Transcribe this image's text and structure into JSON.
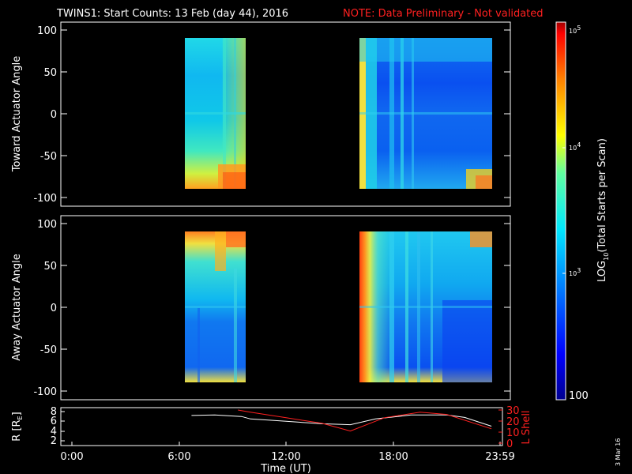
{
  "title": {
    "main": "TWINS1: Start Counts: 13 Feb (day  44), 2016",
    "note": "NOTE: Data Preliminary - Not validated"
  },
  "side_date": "3 Mar 16",
  "colors": {
    "background": "#000000",
    "axis": "#ffffff",
    "note": "#ff2020",
    "r_line": "#ffffff",
    "lshell_line": "#ff2020"
  },
  "colorbar": {
    "label_prefix": "LOG",
    "label_sub": "10",
    "label_suffix": "(Total Starts per Scan)",
    "tick_5": "10",
    "tick_5_exp": "5",
    "tick_4": "10",
    "tick_4_exp": "4",
    "tick_3": "10",
    "tick_3_exp": "3",
    "tick_2": "100",
    "scale": "log",
    "range": [
      100,
      100000
    ],
    "colormap": [
      "#00008f",
      "#0000ff",
      "#0080ff",
      "#00ffff",
      "#80ff80",
      "#ffff00",
      "#ff8000",
      "#ff0000",
      "#8f0000"
    ]
  },
  "chart_data": [
    {
      "type": "heatmap",
      "ylabel": "Toward Actuator Angle",
      "ylim": [
        -110,
        110
      ],
      "yticks": [
        "100",
        "50",
        "0",
        "-50",
        "-100"
      ],
      "x_range_hours": [
        0,
        24
      ],
      "data_intervals": [
        {
          "start": "06:45",
          "end": "09:45"
        },
        {
          "start": "15:40",
          "end": "23:30"
        }
      ]
    },
    {
      "type": "heatmap",
      "ylabel": "Away Actuator Angle",
      "ylim": [
        -110,
        110
      ],
      "yticks": [
        "100",
        "50",
        "0",
        "-50",
        "-100"
      ],
      "x_range_hours": [
        0,
        24
      ],
      "data_intervals": [
        {
          "start": "06:45",
          "end": "09:45"
        },
        {
          "start": "15:40",
          "end": "23:30"
        }
      ]
    },
    {
      "type": "line",
      "ylabel_prefix": "R [R",
      "ylabel_sub": "E",
      "ylabel_suffix": "]",
      "y2label": "L Shell",
      "yticks": [
        "8",
        "6",
        "4",
        "2"
      ],
      "y2ticks": [
        "30",
        "20",
        "10",
        "0"
      ],
      "xticks": [
        "0:00",
        "6:00",
        "12:00",
        "18:00",
        "23:59"
      ],
      "xlabel": "Time (UT)",
      "series": [
        {
          "name": "R",
          "x": [
            6.7,
            8,
            9.5,
            10,
            12,
            14,
            15.6,
            17,
            19,
            21,
            22,
            23.5
          ],
          "y": [
            7.2,
            7.3,
            7.0,
            6.5,
            6.0,
            5.5,
            5.3,
            6.5,
            7.3,
            7.3,
            6.8,
            5.0
          ]
        },
        {
          "name": "L Shell",
          "x": [
            9.3,
            10,
            12,
            14,
            15.6,
            17.5,
            19.5,
            21,
            23.5
          ],
          "y": [
            30,
            28,
            23,
            18,
            11,
            23,
            28,
            26,
            13
          ]
        }
      ]
    }
  ]
}
